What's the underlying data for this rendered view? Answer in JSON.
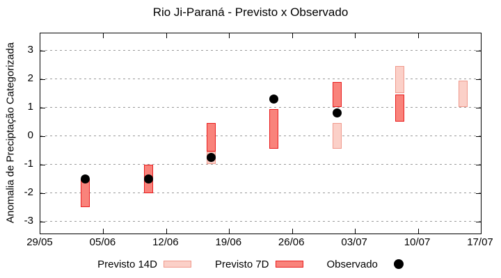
{
  "chart_data": {
    "type": "bar",
    "subtype": "interval-range-bars-with-points",
    "title": "Rio Ji-Paraná - Previsto x Observado",
    "ylabel": "Anomalia de Preciptação Categorizada",
    "xlabel": "",
    "grid": true,
    "legend_position": "bottom",
    "ylim": [
      -3.4,
      3.6
    ],
    "yticks": [
      3,
      2,
      1,
      0,
      -1,
      -2,
      -3
    ],
    "xtick_labels": [
      "29/05",
      "05/06",
      "12/06",
      "19/06",
      "26/06",
      "03/07",
      "10/07",
      "17/07"
    ],
    "x_span_days": 49,
    "xtick_interval_days": 7,
    "colors": {
      "previsto_14d_fill": "#fbd0c8",
      "previsto_14d_border": "#f0988b",
      "previsto_7d_fill": "#f9837b",
      "previsto_7d_border": "#e81b1c",
      "observado": "#000000",
      "gridline": "#9a9a9a"
    },
    "series": [
      {
        "name": "Previsto 14D",
        "kind": "interval",
        "fill": "#fbd0c8",
        "border": "#f0988b",
        "points": [
          {
            "day": 19,
            "low": -1.0,
            "high": -0.55
          },
          {
            "day": 33,
            "low": -0.45,
            "high": 0.45
          },
          {
            "day": 40,
            "low": 1.5,
            "high": 2.45
          },
          {
            "day": 47,
            "low": 1.0,
            "high": 1.95
          }
        ]
      },
      {
        "name": "Previsto 7D",
        "kind": "interval",
        "fill": "#f9837b",
        "border": "#e81b1c",
        "points": [
          {
            "day": 5,
            "low": -2.5,
            "high": -1.5
          },
          {
            "day": 12,
            "low": -2.0,
            "high": -1.0
          },
          {
            "day": 19,
            "low": -0.55,
            "high": 0.45
          },
          {
            "day": 26,
            "low": -0.45,
            "high": 0.95
          },
          {
            "day": 33,
            "low": 1.0,
            "high": 1.9
          },
          {
            "day": 40,
            "low": 0.5,
            "high": 1.45
          }
        ]
      },
      {
        "name": "Observado",
        "kind": "dot",
        "color": "#000000",
        "points": [
          {
            "day": 5,
            "value": -1.5
          },
          {
            "day": 12,
            "value": -1.5
          },
          {
            "day": 19,
            "value": -0.75
          },
          {
            "day": 26,
            "value": 1.3
          },
          {
            "day": 33,
            "value": 0.8
          }
        ]
      }
    ]
  }
}
